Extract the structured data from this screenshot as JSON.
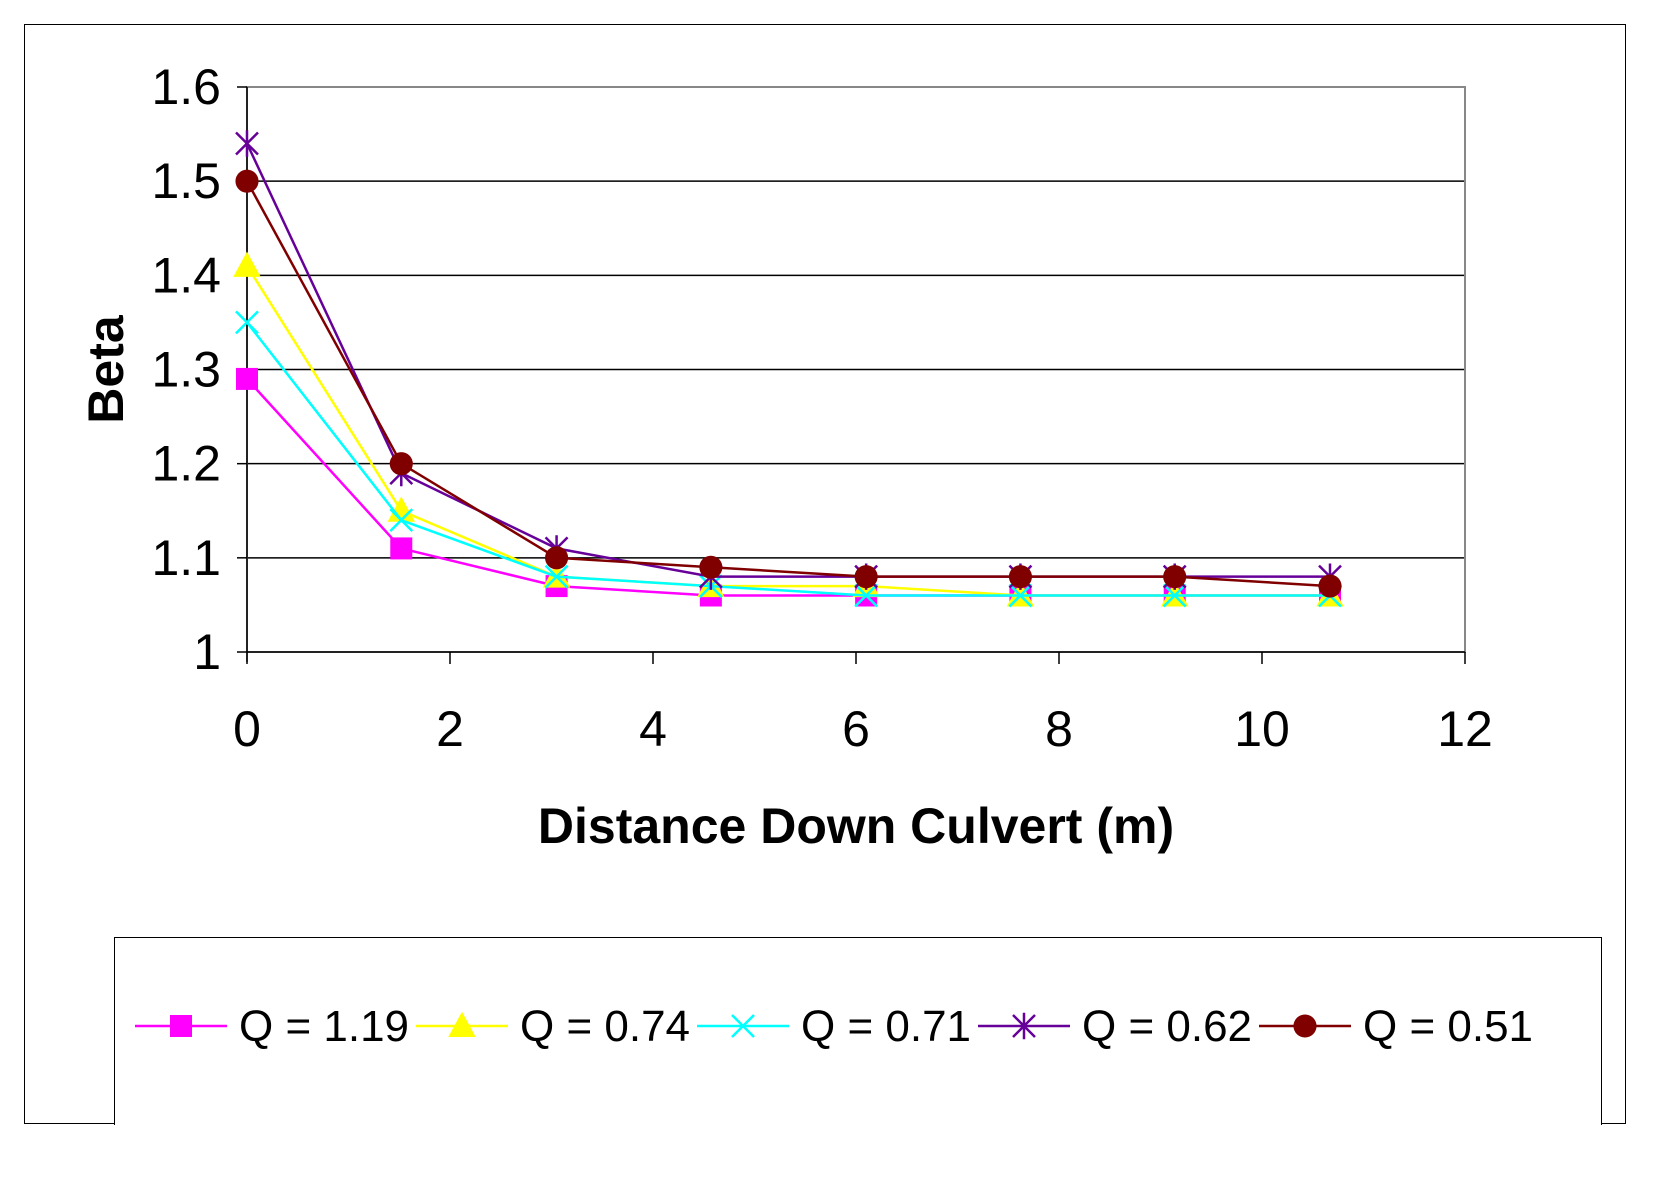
{
  "chart_data": {
    "type": "line",
    "title": "",
    "xlabel": "Distance Down Culvert (m)",
    "ylabel": "Beta",
    "xlim": [
      0,
      12
    ],
    "ylim": [
      1,
      1.6
    ],
    "xticks": [
      0,
      2,
      4,
      6,
      8,
      10,
      12
    ],
    "yticks": [
      1,
      1.1,
      1.2,
      1.3,
      1.4,
      1.5,
      1.6
    ],
    "ytick_labels": [
      "1",
      "1.1",
      "1.2",
      "1.3",
      "1.4",
      "1.5",
      "1.6"
    ],
    "grid": "horizontal",
    "legend_position": "bottom",
    "x": [
      0,
      1.52,
      3.05,
      4.57,
      6.1,
      7.62,
      9.14,
      10.67
    ],
    "series": [
      {
        "name": "Q = 1.19",
        "color": "#ff00ff",
        "marker": "square",
        "values": [
          1.29,
          1.11,
          1.07,
          1.06,
          1.06,
          1.06,
          1.06,
          1.06
        ]
      },
      {
        "name": "Q = 0.74",
        "color": "#ffff00",
        "marker": "triangle",
        "values": [
          1.41,
          1.15,
          1.08,
          1.07,
          1.07,
          1.06,
          1.06,
          1.06
        ]
      },
      {
        "name": "Q = 0.71",
        "color": "#00ffff",
        "marker": "x",
        "values": [
          1.35,
          1.14,
          1.08,
          1.07,
          1.06,
          1.06,
          1.06,
          1.06
        ]
      },
      {
        "name": "Q = 0.62",
        "color": "#660099",
        "marker": "asterisk",
        "values": [
          1.54,
          1.19,
          1.11,
          1.08,
          1.08,
          1.08,
          1.08,
          1.08
        ]
      },
      {
        "name": "Q = 0.51",
        "color": "#800000",
        "marker": "circle",
        "values": [
          1.5,
          1.2,
          1.1,
          1.09,
          1.08,
          1.08,
          1.08,
          1.07
        ]
      }
    ]
  }
}
